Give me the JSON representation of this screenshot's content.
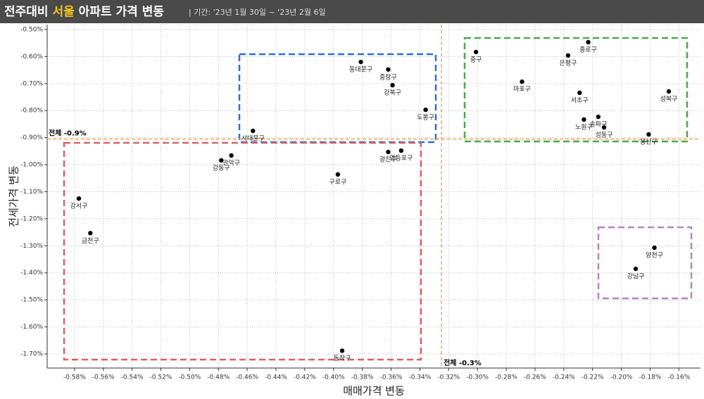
{
  "chart_data": {
    "type": "scatter",
    "title_parts": [
      "전주대비 ",
      "서울",
      " 아파트 가격 변동"
    ],
    "subtitle": "| 기간: '23년 1월 30일 ~ '23년 2월 6일",
    "x_label": "매매가격 변동",
    "y_label": "전세가격 변동",
    "point_labels": [
      "동대문구",
      "중랑구",
      "강북구",
      "도봉구",
      "서대문구",
      "광진구",
      "영등포구",
      "구로구",
      "강동구",
      "관악구",
      "강서구",
      "금천구",
      "동작구",
      "중구",
      "종로구",
      "은평구",
      "마포구",
      "서초구",
      "성북구",
      "노원구",
      "송파구",
      "성동구",
      "용산구",
      "양천구",
      "강남구"
    ],
    "x": [
      -0.381,
      -0.362,
      -0.359,
      -0.336,
      -0.456,
      -0.362,
      -0.353,
      -0.397,
      -0.478,
      -0.471,
      -0.577,
      -0.569,
      -0.394,
      -0.301,
      -0.223,
      -0.237,
      -0.269,
      -0.229,
      -0.167,
      -0.226,
      -0.216,
      -0.212,
      -0.181,
      -0.177,
      -0.19
    ],
    "values": [
      -0.62,
      -0.648,
      -0.706,
      -0.797,
      -0.875,
      -0.953,
      -0.948,
      -1.036,
      -0.984,
      -0.966,
      -1.125,
      -1.253,
      -1.688,
      -0.583,
      -0.547,
      -0.596,
      -0.693,
      -0.734,
      -0.729,
      -0.833,
      -0.823,
      -0.862,
      -0.888,
      -1.307,
      -1.385
    ],
    "color": "#000000",
    "xlim": [
      -0.599,
      -0.145
    ],
    "ylim": [
      -1.752,
      -0.482
    ],
    "xticks": [
      {
        "value": -0.58,
        "label": "-0.58%"
      },
      {
        "value": -0.56,
        "label": "-0.56%"
      },
      {
        "value": -0.54,
        "label": "-0.54%"
      },
      {
        "value": -0.52,
        "label": "-0.52%"
      },
      {
        "value": -0.5,
        "label": "-0.50%"
      },
      {
        "value": -0.48,
        "label": "-0.48%"
      },
      {
        "value": -0.46,
        "label": "-0.46%"
      },
      {
        "value": -0.44,
        "label": "-0.44%"
      },
      {
        "value": -0.42,
        "label": "-0.42%"
      },
      {
        "value": -0.4,
        "label": "-0.40%"
      },
      {
        "value": -0.38,
        "label": "-0.38%"
      },
      {
        "value": -0.36,
        "label": "-0.36%"
      },
      {
        "value": -0.34,
        "label": "-0.34%"
      },
      {
        "value": -0.32,
        "label": "-0.32%"
      },
      {
        "value": -0.3,
        "label": "-0.30%"
      },
      {
        "value": -0.28,
        "label": "-0.28%"
      },
      {
        "value": -0.26,
        "label": "-0.26%"
      },
      {
        "value": -0.24,
        "label": "-0.24%"
      },
      {
        "value": -0.22,
        "label": "-0.22%"
      },
      {
        "value": -0.2,
        "label": "-0.20%"
      },
      {
        "value": -0.18,
        "label": "-0.18%"
      },
      {
        "value": -0.16,
        "label": "-0.16%"
      }
    ],
    "yticks": [
      {
        "value": -0.5,
        "label": "-0.50%"
      },
      {
        "value": -0.6,
        "label": "-0.60%"
      },
      {
        "value": -0.7,
        "label": "-0.70%"
      },
      {
        "value": -0.8,
        "label": "-0.80%"
      },
      {
        "value": -0.9,
        "label": "-0.90%"
      },
      {
        "value": -1.0,
        "label": "-1.00%"
      },
      {
        "value": -1.1,
        "label": "-1.10%"
      },
      {
        "value": -1.2,
        "label": "-1.20%"
      },
      {
        "value": -1.3,
        "label": "-1.30%"
      },
      {
        "value": -1.4,
        "label": "-1.40%"
      },
      {
        "value": -1.5,
        "label": "-1.50%"
      },
      {
        "value": -1.6,
        "label": "-1.60%"
      },
      {
        "value": -1.7,
        "label": "-1.70%"
      }
    ],
    "grid": true,
    "reference_lines": [
      {
        "axis": "y",
        "value": -0.905,
        "label": "전체 -0.9%",
        "color": "#f0a040"
      },
      {
        "axis": "x",
        "value": -0.325,
        "label": "전체 -0.3%",
        "color": "#f0a040"
      }
    ]
  }
}
